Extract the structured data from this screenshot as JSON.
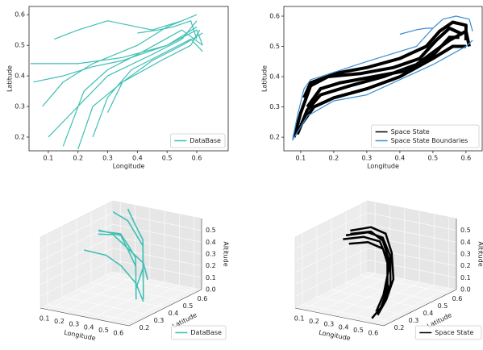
{
  "chart_data": [
    {
      "type": "line",
      "xlabel": "Longitude",
      "ylabel": "Latitude",
      "xlim": [
        0.035,
        0.706
      ],
      "ylim": [
        0.155,
        0.627
      ],
      "xticks": [
        0.1,
        0.2,
        0.3,
        0.4,
        0.5,
        0.6
      ],
      "yticks": [
        0.2,
        0.3,
        0.4,
        0.5,
        0.6
      ],
      "legend": "lower right",
      "series": [
        {
          "name": "DataBase",
          "color": "#3fbfb4",
          "x": [
            0.04,
            0.2,
            0.35,
            0.5,
            0.6,
            0.62,
            null,
            0.1,
            0.2,
            0.3,
            0.45,
            0.55,
            0.6,
            null,
            0.15,
            0.22,
            0.3,
            0.42,
            0.55,
            0.62,
            null,
            0.08,
            0.15,
            0.25,
            0.4,
            0.5,
            0.6,
            null,
            0.2,
            0.25,
            0.35,
            0.48,
            0.58,
            0.61,
            null,
            0.12,
            0.2,
            0.3,
            0.45,
            0.55,
            null,
            0.4,
            0.47,
            0.52,
            0.58,
            0.6,
            null,
            0.25,
            0.3,
            0.38,
            0.48,
            0.58,
            0.62,
            null,
            0.05,
            0.15,
            0.25,
            0.35,
            0.5,
            0.6,
            null,
            0.3,
            0.35,
            0.45,
            0.55,
            0.62
          ],
          "values": [
            0.44,
            0.44,
            0.46,
            0.5,
            0.55,
            0.5,
            null,
            0.2,
            0.3,
            0.4,
            0.47,
            0.52,
            0.58,
            null,
            0.17,
            0.35,
            0.42,
            0.48,
            0.55,
            0.5,
            null,
            0.3,
            0.38,
            0.44,
            0.5,
            0.56,
            0.6,
            null,
            0.16,
            0.3,
            0.38,
            0.45,
            0.5,
            0.55,
            null,
            0.52,
            0.55,
            0.58,
            0.55,
            0.58,
            null,
            0.54,
            0.55,
            0.56,
            0.58,
            0.52,
            null,
            0.2,
            0.33,
            0.42,
            0.47,
            0.52,
            0.48,
            null,
            0.38,
            0.4,
            0.43,
            0.45,
            0.5,
            0.56,
            null,
            0.28,
            0.38,
            0.45,
            0.5,
            0.54
          ]
        }
      ]
    },
    {
      "type": "line",
      "xlabel": "Longitude",
      "ylabel": "Latitude",
      "xlim": [
        0.049,
        0.649
      ],
      "ylim": [
        0.155,
        0.632
      ],
      "xticks": [
        0.1,
        0.2,
        0.3,
        0.4,
        0.5,
        0.6
      ],
      "yticks": [
        0.2,
        0.3,
        0.4,
        0.5,
        0.6
      ],
      "legend": "lower right",
      "series": [
        {
          "name": "Space State",
          "color": "#000000",
          "x": [
            0.08,
            0.1,
            0.13,
            0.2,
            0.3,
            0.4,
            0.48,
            0.52,
            0.56,
            0.6,
            0.6,
            null,
            0.09,
            0.12,
            0.16,
            0.25,
            0.35,
            0.45,
            0.5,
            0.55,
            0.6,
            0.61,
            null,
            0.1,
            0.14,
            0.2,
            0.3,
            0.4,
            0.5,
            0.56,
            0.6,
            null,
            0.11,
            0.13,
            0.18,
            0.28,
            0.38,
            0.46,
            0.51,
            0.55,
            0.59,
            null,
            0.12,
            0.16,
            0.22,
            0.32,
            0.42,
            0.5,
            0.55,
            0.58
          ],
          "values": [
            0.2,
            0.28,
            0.37,
            0.41,
            0.43,
            0.46,
            0.5,
            0.55,
            0.58,
            0.57,
            0.52,
            null,
            0.21,
            0.29,
            0.34,
            0.37,
            0.4,
            0.44,
            0.48,
            0.52,
            0.55,
            0.5,
            null,
            0.24,
            0.3,
            0.33,
            0.36,
            0.4,
            0.46,
            0.5,
            0.5,
            null,
            0.33,
            0.38,
            0.4,
            0.41,
            0.43,
            0.46,
            0.52,
            0.56,
            0.54,
            null,
            0.3,
            0.36,
            0.38,
            0.4,
            0.42,
            0.47,
            0.53,
            0.53
          ]
        },
        {
          "name": "Space State Boundaries",
          "color": "#3a8ed4",
          "x": [
            0.075,
            0.09,
            0.11,
            0.13,
            0.16,
            0.3,
            0.45,
            0.5,
            0.53,
            0.57,
            0.61,
            0.62,
            null,
            0.075,
            0.12,
            0.2,
            0.3,
            0.4,
            0.5,
            0.55,
            0.6,
            0.62,
            null,
            0.4,
            0.45,
            0.48,
            0.5
          ],
          "values": [
            0.19,
            0.27,
            0.36,
            0.39,
            0.4,
            0.45,
            0.5,
            0.56,
            0.59,
            0.6,
            0.59,
            0.55,
            null,
            0.19,
            0.27,
            0.32,
            0.34,
            0.39,
            0.44,
            0.47,
            0.5,
            0.52,
            null,
            0.54,
            0.555,
            0.56,
            0.56
          ]
        }
      ]
    },
    {
      "type": "line3d",
      "xlabel": "Longitude",
      "ylabel": "Latitude",
      "zlabel": "Altitude",
      "xlim": [
        0.05,
        0.65
      ],
      "ylim": [
        0.15,
        0.65
      ],
      "zlim": [
        0,
        0.6
      ],
      "xticks": [
        0.1,
        0.2,
        0.3,
        0.4,
        0.5,
        0.6
      ],
      "yticks": [
        0.2,
        0.3,
        0.4,
        0.5,
        0.6
      ],
      "zticks": [
        {
          "value": 0,
          "label": "0.0"
        },
        0.1,
        0.2,
        0.3,
        0.4,
        0.5
      ],
      "legend": "lower right",
      "series": [
        {
          "name": "DataBase",
          "color": "#3fbfb4",
          "x": [
            0.1,
            0.2,
            0.3,
            0.4,
            0.5,
            0.55,
            null,
            0.1,
            0.2,
            0.3,
            0.4,
            0.5,
            0.6,
            null,
            0.15,
            0.25,
            0.35,
            0.45,
            0.55,
            null,
            0.05,
            0.15,
            0.3,
            0.45,
            0.55,
            0.6,
            null,
            0.1,
            0.2,
            0.35,
            0.5,
            0.6,
            null,
            0.2,
            0.3,
            0.4,
            0.5,
            0.58
          ],
          "y": [
            0.6,
            0.6,
            0.55,
            0.5,
            0.4,
            0.3,
            null,
            0.5,
            0.55,
            0.5,
            0.45,
            0.35,
            0.25,
            null,
            0.45,
            0.5,
            0.45,
            0.4,
            0.3,
            null,
            0.55,
            0.55,
            0.5,
            0.45,
            0.35,
            0.3,
            null,
            0.4,
            0.45,
            0.4,
            0.35,
            0.3,
            null,
            0.6,
            0.55,
            0.5,
            0.4,
            0.35
          ],
          "z": [
            0.55,
            0.5,
            0.45,
            0.4,
            0.3,
            0.2,
            null,
            0.45,
            0.42,
            0.38,
            0.33,
            0.25,
            0.15,
            null,
            0.5,
            0.45,
            0.38,
            0.3,
            0.18,
            null,
            0.38,
            0.4,
            0.35,
            0.3,
            0.2,
            0.12,
            null,
            0.35,
            0.3,
            0.28,
            0.2,
            0.1,
            null,
            0.6,
            0.52,
            0.45,
            0.35,
            0.25
          ]
        }
      ]
    },
    {
      "type": "line3d",
      "xlabel": "Longitude",
      "ylabel": "Latitude",
      "zlabel": "Altitude",
      "xlim": [
        0.05,
        0.65
      ],
      "ylim": [
        0.15,
        0.65
      ],
      "zlim": [
        0,
        0.6
      ],
      "xticks": [
        0.1,
        0.2,
        0.3,
        0.4,
        0.5,
        0.6
      ],
      "yticks": [
        0.2,
        0.3,
        0.4,
        0.5,
        0.6
      ],
      "zticks": [
        {
          "value": 0,
          "label": "0.0"
        },
        0.1,
        0.2,
        0.3,
        0.4,
        0.5
      ],
      "legend": "lower right",
      "series": [
        {
          "name": "Space State",
          "color": "#000000",
          "x": [
            0.05,
            0.15,
            0.25,
            0.35,
            0.45,
            0.5,
            0.52,
            null,
            0.05,
            0.15,
            0.25,
            0.35,
            0.45,
            0.5,
            null,
            0.08,
            0.18,
            0.28,
            0.38,
            0.46,
            0.5,
            null,
            0.1,
            0.2,
            0.3,
            0.4,
            0.47,
            null,
            0.06,
            0.16,
            0.26,
            0.36,
            0.45,
            0.5,
            0.54
          ],
          "y": [
            0.5,
            0.55,
            0.55,
            0.5,
            0.4,
            0.3,
            0.2,
            null,
            0.48,
            0.52,
            0.53,
            0.48,
            0.38,
            0.28,
            null,
            0.5,
            0.54,
            0.52,
            0.46,
            0.36,
            0.25,
            null,
            0.47,
            0.5,
            0.5,
            0.44,
            0.33,
            null,
            0.52,
            0.56,
            0.56,
            0.5,
            0.42,
            0.32,
            0.22
          ],
          "z": [
            0.4,
            0.42,
            0.4,
            0.3,
            0.15,
            0.05,
            0,
            null,
            0.38,
            0.4,
            0.38,
            0.28,
            0.12,
            0.03,
            null,
            0.42,
            0.44,
            0.4,
            0.3,
            0.14,
            0.02,
            null,
            0.36,
            0.38,
            0.35,
            0.25,
            0.1,
            null,
            0.43,
            0.46,
            0.43,
            0.33,
            0.18,
            0.08,
            0.02
          ]
        }
      ]
    }
  ]
}
